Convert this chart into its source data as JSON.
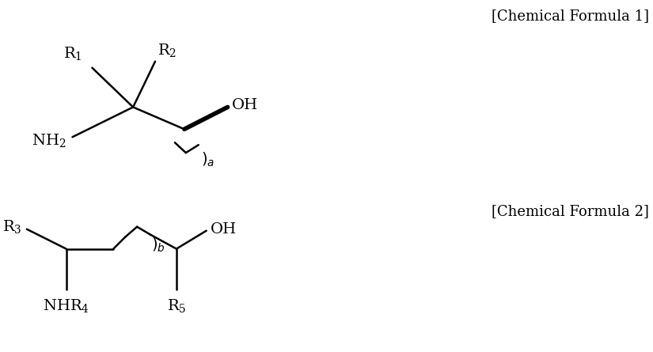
{
  "background_color": "#ffffff",
  "formula1_label": "[Chemical Formula 1]",
  "formula2_label": "[Chemical Formula 2]",
  "label_fontsize": 13,
  "bond_color": "#000000",
  "text_color": "#000000",
  "text_fontsize": 14,
  "sub_fontsize": 12
}
